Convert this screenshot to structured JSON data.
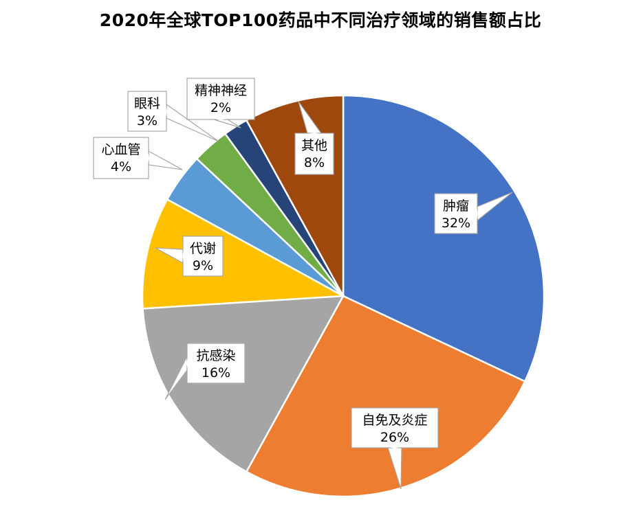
{
  "chart_data": {
    "type": "pie",
    "title": "2020年全球TOP100药品中不同治疗领域的销售额占比",
    "slices": [
      {
        "label": "肿瘤",
        "value": 32,
        "value_label": "32%",
        "color": "#4472C4"
      },
      {
        "label": "自免及炎症",
        "value": 26,
        "value_label": "26%",
        "color": "#ED7D31"
      },
      {
        "label": "抗感染",
        "value": 16,
        "value_label": "16%",
        "color": "#A5A5A5"
      },
      {
        "label": "代谢",
        "value": 9,
        "value_label": "9%",
        "color": "#FFC000"
      },
      {
        "label": "心血管",
        "value": 4,
        "value_label": "4%",
        "color": "#5B9BD5"
      },
      {
        "label": "眼科",
        "value": 3,
        "value_label": "3%",
        "color": "#70AD47"
      },
      {
        "label": "精神神经",
        "value": 2,
        "value_label": "2%",
        "color": "#264478"
      },
      {
        "label": "其他",
        "value": 8,
        "value_label": "8%",
        "color": "#9E480E"
      }
    ],
    "start_angle_deg": 0,
    "direction": "clockwise",
    "legend": "none",
    "data_labels": "callouts"
  }
}
